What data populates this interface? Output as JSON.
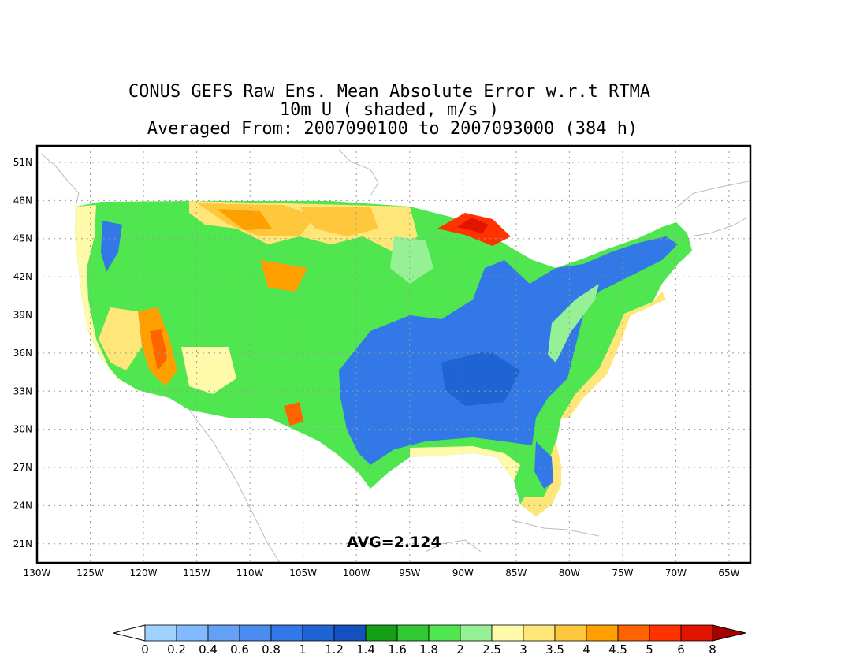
{
  "title": {
    "line1": "CONUS GEFS Raw Ens. Mean Absolute Error w.r.t RTMA",
    "line2": "10m U ( shaded, m/s )",
    "line3": "Averaged From: 2007090100 to 2007093000 (384 h)"
  },
  "map": {
    "lon_ticks": [
      "130W",
      "125W",
      "120W",
      "115W",
      "110W",
      "105W",
      "100W",
      "95W",
      "90W",
      "85W",
      "80W",
      "75W",
      "70W",
      "65W"
    ],
    "lat_ticks": [
      "51N",
      "48N",
      "45N",
      "42N",
      "39N",
      "36N",
      "33N",
      "30N",
      "27N",
      "24N",
      "21N"
    ],
    "lon_range": [
      -130,
      -63
    ],
    "lat_range": [
      19.5,
      52.3
    ],
    "grid": true,
    "field": "mean absolute error of 10m U wind over the contiguous US",
    "avg_label": "AVG=2.124"
  },
  "colorbar": {
    "labels": [
      "0",
      "0.2",
      "0.4",
      "0.6",
      "0.8",
      "1",
      "1.2",
      "1.4",
      "1.6",
      "1.8",
      "2",
      "2.5",
      "3",
      "3.5",
      "4",
      "4.5",
      "5",
      "6",
      "8"
    ],
    "colors": [
      "#ffffff",
      "#a0d2ff",
      "#82b9ff",
      "#64a0f5",
      "#4a8cf0",
      "#3278e6",
      "#1e64d2",
      "#1450be",
      "#14a014",
      "#32c832",
      "#50e650",
      "#96f096",
      "#fffaaa",
      "#ffe678",
      "#ffc83c",
      "#ffa000",
      "#ff6400",
      "#ff3200",
      "#e11400",
      "#a50000"
    ]
  }
}
